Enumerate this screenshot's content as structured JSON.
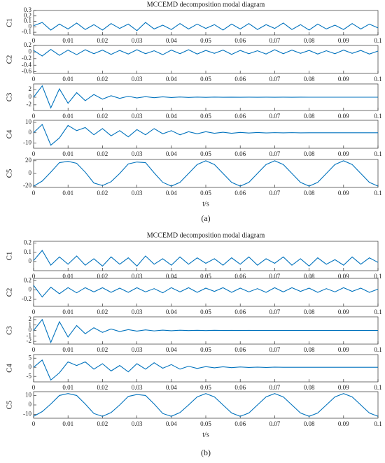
{
  "captions": [
    "(a)",
    "(b)"
  ],
  "chart_data": [
    {
      "type": "line",
      "title": "MCCEMD decomposition modal diagram",
      "ylabel": "C1",
      "color": "#0072bd",
      "x": [
        0,
        0.0025,
        0.005,
        0.0075,
        0.01,
        0.0125,
        0.015,
        0.0175,
        0.02,
        0.0225,
        0.025,
        0.0275,
        0.03,
        0.0325,
        0.035,
        0.0375,
        0.04,
        0.0425,
        0.045,
        0.0475,
        0.05,
        0.0525,
        0.055,
        0.0575,
        0.06,
        0.0625,
        0.065,
        0.0675,
        0.07,
        0.0725,
        0.075,
        0.0775,
        0.08,
        0.0825,
        0.085,
        0.0875,
        0.09,
        0.0925,
        0.095,
        0.0975,
        0.1
      ],
      "values": [
        0.02,
        0.08,
        -0.06,
        0.05,
        -0.04,
        0.07,
        -0.05,
        0.04,
        -0.06,
        0.06,
        -0.03,
        0.05,
        -0.07,
        0.08,
        -0.04,
        0.03,
        -0.05,
        0.06,
        -0.04,
        0.05,
        -0.03,
        0.04,
        -0.06,
        0.05,
        -0.04,
        0.06,
        -0.05,
        0.04,
        -0.03,
        0.07,
        -0.05,
        0.04,
        -0.06,
        0.05,
        -0.04,
        0.03,
        -0.05,
        0.06,
        -0.04,
        0.05,
        -0.02
      ],
      "xlim": [
        0,
        0.1
      ],
      "xticks": [
        0,
        0.01,
        0.02,
        0.03,
        0.04,
        0.05,
        0.06,
        0.07,
        0.08,
        0.09,
        0.1
      ],
      "ylim": [
        -0.15,
        0.3
      ],
      "yticks": [
        0.3,
        0.2,
        0.1,
        0,
        -0.1
      ]
    },
    {
      "type": "line",
      "ylabel": "C2",
      "color": "#0072bd",
      "x": [
        0,
        0.0025,
        0.005,
        0.0075,
        0.01,
        0.0125,
        0.015,
        0.0175,
        0.02,
        0.0225,
        0.025,
        0.0275,
        0.03,
        0.0325,
        0.035,
        0.0375,
        0.04,
        0.0425,
        0.045,
        0.0475,
        0.05,
        0.0525,
        0.055,
        0.0575,
        0.06,
        0.0625,
        0.065,
        0.0675,
        0.07,
        0.0725,
        0.075,
        0.0775,
        0.08,
        0.0825,
        0.085,
        0.0875,
        0.09,
        0.0925,
        0.095,
        0.0975,
        0.1
      ],
      "values": [
        0.05,
        -0.12,
        0.08,
        -0.1,
        0.06,
        -0.08,
        0.07,
        -0.05,
        0.06,
        -0.07,
        0.05,
        -0.06,
        0.07,
        -0.05,
        0.04,
        -0.08,
        0.06,
        -0.05,
        0.07,
        -0.06,
        0.05,
        -0.04,
        0.06,
        -0.07,
        0.05,
        -0.05,
        0.04,
        -0.06,
        0.07,
        -0.05,
        0.06,
        -0.04,
        0.05,
        -0.06,
        0.04,
        -0.05,
        0.06,
        -0.04,
        0.05,
        -0.06,
        0.03
      ],
      "xlim": [
        0,
        0.1
      ],
      "xticks": [
        0,
        0.01,
        0.02,
        0.03,
        0.04,
        0.05,
        0.06,
        0.07,
        0.08,
        0.09,
        0.1
      ],
      "ylim": [
        -0.65,
        0.2
      ],
      "yticks": [
        0.2,
        0,
        -0.2,
        -0.4,
        -0.6
      ]
    },
    {
      "type": "line",
      "ylabel": "C3",
      "color": "#0072bd",
      "x": [
        0,
        0.0025,
        0.005,
        0.0075,
        0.01,
        0.0125,
        0.015,
        0.0175,
        0.02,
        0.0225,
        0.025,
        0.0275,
        0.03,
        0.0325,
        0.035,
        0.0375,
        0.04,
        0.0425,
        0.045,
        0.0475,
        0.05,
        0.0525,
        0.055,
        0.0575,
        0.06,
        0.0625,
        0.065,
        0.0675,
        0.07,
        0.0725,
        0.075,
        0.0775,
        0.08,
        0.0825,
        0.085,
        0.0875,
        0.09,
        0.0925,
        0.095,
        0.0975,
        0.1
      ],
      "values": [
        0,
        3,
        -2.8,
        2.2,
        -1.6,
        1.2,
        -0.9,
        0.7,
        -0.5,
        0.4,
        -0.3,
        0.25,
        -0.2,
        0.15,
        -0.12,
        0.1,
        -0.08,
        0.06,
        -0.05,
        0.04,
        -0.03,
        0.03,
        -0.02,
        0.02,
        -0.02,
        0.01,
        -0.01,
        0.01,
        -0.01,
        0.01,
        -0.01,
        0.01,
        0,
        0,
        0,
        0,
        0,
        0,
        0,
        0,
        0
      ],
      "xlim": [
        0,
        0.1
      ],
      "xticks": [
        0,
        0.01,
        0.02,
        0.03,
        0.04,
        0.05,
        0.06,
        0.07,
        0.08,
        0.09,
        0.1
      ],
      "ylim": [
        -3.5,
        3.5
      ],
      "yticks": [
        2,
        0,
        -2
      ]
    },
    {
      "type": "line",
      "ylabel": "C4",
      "color": "#0072bd",
      "x": [
        0,
        0.0025,
        0.005,
        0.0075,
        0.01,
        0.0125,
        0.015,
        0.0175,
        0.02,
        0.0225,
        0.025,
        0.0275,
        0.03,
        0.0325,
        0.035,
        0.0375,
        0.04,
        0.0425,
        0.045,
        0.0475,
        0.05,
        0.0525,
        0.055,
        0.0575,
        0.06,
        0.0625,
        0.065,
        0.0675,
        0.07,
        0.0725,
        0.075,
        0.0775,
        0.08,
        0.0825,
        0.085,
        0.0875,
        0.09,
        0.0925,
        0.095,
        0.0975,
        0.1
      ],
      "values": [
        0,
        8,
        -12,
        -5,
        7,
        2,
        5,
        -2,
        4,
        -3,
        2,
        -4,
        3,
        -2,
        4,
        -1,
        2,
        -2,
        1,
        -1,
        1,
        -0.5,
        0.5,
        -0.5,
        0.3,
        -0.3,
        0.2,
        -0.2,
        0.1,
        -0.1,
        0.1,
        -0.1,
        0,
        0,
        0,
        0,
        0,
        0,
        0,
        0,
        0
      ],
      "xlim": [
        0,
        0.1
      ],
      "xticks": [
        0,
        0.01,
        0.02,
        0.03,
        0.04,
        0.05,
        0.06,
        0.07,
        0.08,
        0.09,
        0.1
      ],
      "ylim": [
        -15,
        12
      ],
      "yticks": [
        10,
        0,
        -10
      ]
    },
    {
      "type": "line",
      "ylabel": "C5",
      "xlabel": "t/s",
      "color": "#0072bd",
      "x": [
        0,
        0.0025,
        0.005,
        0.0075,
        0.01,
        0.0125,
        0.015,
        0.0175,
        0.02,
        0.0225,
        0.025,
        0.0275,
        0.03,
        0.0325,
        0.035,
        0.0375,
        0.04,
        0.0425,
        0.045,
        0.0475,
        0.05,
        0.0525,
        0.055,
        0.0575,
        0.06,
        0.0625,
        0.065,
        0.0675,
        0.07,
        0.0725,
        0.075,
        0.0775,
        0.08,
        0.0825,
        0.085,
        0.0875,
        0.09,
        0.0925,
        0.095,
        0.0975,
        0.1
      ],
      "values": [
        -20,
        -12,
        2,
        17,
        19,
        16,
        2,
        -15,
        -19,
        -13,
        0,
        15,
        18,
        17,
        1,
        -14,
        -20,
        -14,
        0,
        14,
        20,
        14,
        0,
        -14,
        -20,
        -14,
        0,
        14,
        20,
        14,
        0,
        -14,
        -20,
        -14,
        0,
        14,
        20,
        14,
        0,
        -14,
        -20
      ],
      "xlim": [
        0,
        0.1
      ],
      "xticks": [
        0,
        0.01,
        0.02,
        0.03,
        0.04,
        0.05,
        0.06,
        0.07,
        0.08,
        0.09,
        0.1
      ],
      "ylim": [
        -22,
        22
      ],
      "yticks": [
        20,
        0,
        -20
      ]
    },
    {
      "type": "line",
      "title": "MCCEMD decomposition modal diagram",
      "ylabel": "C1",
      "color": "#0072bd",
      "x": [
        0,
        0.0025,
        0.005,
        0.0075,
        0.01,
        0.0125,
        0.015,
        0.0175,
        0.02,
        0.0225,
        0.025,
        0.0275,
        0.03,
        0.0325,
        0.035,
        0.0375,
        0.04,
        0.0425,
        0.045,
        0.0475,
        0.05,
        0.0525,
        0.055,
        0.0575,
        0.06,
        0.0625,
        0.065,
        0.0675,
        0.07,
        0.0725,
        0.075,
        0.0775,
        0.08,
        0.0825,
        0.085,
        0.0875,
        0.09,
        0.0925,
        0.095,
        0.0975,
        0.1
      ],
      "values": [
        0.01,
        0.12,
        -0.04,
        0.05,
        -0.03,
        0.06,
        -0.04,
        0.03,
        -0.05,
        0.05,
        -0.03,
        0.04,
        -0.05,
        0.06,
        -0.03,
        0.03,
        -0.04,
        0.05,
        -0.03,
        0.04,
        -0.02,
        0.03,
        -0.04,
        0.04,
        -0.03,
        0.05,
        -0.04,
        0.03,
        -0.02,
        0.05,
        -0.04,
        0.03,
        -0.05,
        0.04,
        -0.03,
        0.02,
        -0.04,
        0.05,
        -0.03,
        0.04,
        -0.01
      ],
      "xlim": [
        0,
        0.1
      ],
      "xticks": [
        0,
        0.01,
        0.02,
        0.03,
        0.04,
        0.05,
        0.06,
        0.07,
        0.08,
        0.09,
        0.1
      ],
      "ylim": [
        -0.1,
        0.22
      ],
      "yticks": [
        0.2,
        0.1,
        0
      ]
    },
    {
      "type": "line",
      "ylabel": "C2",
      "color": "#0072bd",
      "x": [
        0,
        0.0025,
        0.005,
        0.0075,
        0.01,
        0.0125,
        0.015,
        0.0175,
        0.02,
        0.0225,
        0.025,
        0.0275,
        0.03,
        0.0325,
        0.035,
        0.0375,
        0.04,
        0.0425,
        0.045,
        0.0475,
        0.05,
        0.0525,
        0.055,
        0.0575,
        0.06,
        0.0625,
        0.065,
        0.0675,
        0.07,
        0.0725,
        0.075,
        0.0775,
        0.08,
        0.0825,
        0.085,
        0.0875,
        0.09,
        0.0925,
        0.095,
        0.0975,
        0.1
      ],
      "values": [
        0.1,
        -0.15,
        0.06,
        -0.08,
        0.05,
        -0.06,
        0.05,
        -0.04,
        0.05,
        -0.05,
        0.04,
        -0.05,
        0.05,
        -0.04,
        0.03,
        -0.06,
        0.05,
        -0.04,
        0.05,
        -0.05,
        0.04,
        -0.03,
        0.05,
        -0.05,
        0.04,
        -0.04,
        0.03,
        -0.05,
        0.05,
        -0.04,
        0.05,
        -0.03,
        0.04,
        -0.05,
        0.03,
        -0.04,
        0.05,
        -0.03,
        0.04,
        -0.05,
        0.02
      ],
      "xlim": [
        0,
        0.1
      ],
      "xticks": [
        0,
        0.01,
        0.02,
        0.03,
        0.04,
        0.05,
        0.06,
        0.07,
        0.08,
        0.09,
        0.1
      ],
      "ylim": [
        -0.35,
        0.25
      ],
      "yticks": [
        0.2,
        0,
        -0.2
      ]
    },
    {
      "type": "line",
      "ylabel": "C3",
      "color": "#0072bd",
      "x": [
        0,
        0.0025,
        0.005,
        0.0075,
        0.01,
        0.0125,
        0.015,
        0.0175,
        0.02,
        0.0225,
        0.025,
        0.0275,
        0.03,
        0.0325,
        0.035,
        0.0375,
        0.04,
        0.0425,
        0.045,
        0.0475,
        0.05,
        0.0525,
        0.055,
        0.0575,
        0.06,
        0.0625,
        0.065,
        0.0675,
        0.07,
        0.0725,
        0.075,
        0.0775,
        0.08,
        0.0825,
        0.085,
        0.0875,
        0.09,
        0.0925,
        0.095,
        0.0975,
        0.1
      ],
      "values": [
        0,
        2,
        -2.2,
        1.6,
        -1.2,
        0.9,
        -0.6,
        0.5,
        -0.35,
        0.28,
        -0.2,
        0.15,
        -0.12,
        0.1,
        -0.08,
        0.06,
        -0.05,
        0.04,
        -0.03,
        0.03,
        -0.02,
        0.02,
        -0.01,
        0.01,
        -0.01,
        0.01,
        0,
        0,
        0,
        0,
        0,
        0,
        0,
        0,
        0,
        0,
        0,
        0,
        0,
        0,
        0
      ],
      "xlim": [
        0,
        0.1
      ],
      "xticks": [
        0,
        0.01,
        0.02,
        0.03,
        0.04,
        0.05,
        0.06,
        0.07,
        0.08,
        0.09,
        0.1
      ],
      "ylim": [
        -2.5,
        2.5
      ],
      "yticks": [
        2,
        1,
        0,
        -1,
        -2
      ]
    },
    {
      "type": "line",
      "ylabel": "C4",
      "color": "#0072bd",
      "x": [
        0,
        0.0025,
        0.005,
        0.0075,
        0.01,
        0.0125,
        0.015,
        0.0175,
        0.02,
        0.0225,
        0.025,
        0.0275,
        0.03,
        0.0325,
        0.035,
        0.0375,
        0.04,
        0.0425,
        0.045,
        0.0475,
        0.05,
        0.0525,
        0.055,
        0.0575,
        0.06,
        0.0625,
        0.065,
        0.0675,
        0.07,
        0.0725,
        0.075,
        0.0775,
        0.08,
        0.0825,
        0.085,
        0.0875,
        0.09,
        0.0925,
        0.095,
        0.0975,
        0.1
      ],
      "values": [
        0,
        4,
        -7,
        -3,
        3,
        1,
        3,
        -1,
        2,
        -2,
        1,
        -2.5,
        2,
        -1,
        2.5,
        -0.5,
        1.5,
        -1,
        0.6,
        -0.6,
        0.4,
        -0.3,
        0.3,
        -0.2,
        0.2,
        -0.1,
        0.1,
        -0.1,
        0.1,
        0,
        0,
        0,
        0,
        0,
        0,
        0,
        0,
        0,
        0,
        0,
        0
      ],
      "xlim": [
        0,
        0.1
      ],
      "xticks": [
        0,
        0.01,
        0.02,
        0.03,
        0.04,
        0.05,
        0.06,
        0.07,
        0.08,
        0.09,
        0.1
      ],
      "ylim": [
        -8,
        7
      ],
      "yticks": [
        5,
        0,
        -5
      ]
    },
    {
      "type": "line",
      "ylabel": "C5",
      "xlabel": "t/s",
      "color": "#0072bd",
      "x": [
        0,
        0.0025,
        0.005,
        0.0075,
        0.01,
        0.0125,
        0.015,
        0.0175,
        0.02,
        0.0225,
        0.025,
        0.0275,
        0.03,
        0.0325,
        0.035,
        0.0375,
        0.04,
        0.0425,
        0.045,
        0.0475,
        0.05,
        0.0525,
        0.055,
        0.0575,
        0.06,
        0.0625,
        0.065,
        0.0675,
        0.07,
        0.0725,
        0.075,
        0.0775,
        0.08,
        0.0825,
        0.085,
        0.0875,
        0.09,
        0.0925,
        0.095,
        0.0975,
        0.1
      ],
      "values": [
        -12,
        -7,
        1,
        10,
        12,
        10,
        1,
        -9,
        -12,
        -8,
        0,
        9,
        11,
        10,
        1,
        -9,
        -12,
        -8,
        0,
        8.5,
        12,
        8.5,
        0,
        -8.5,
        -12,
        -8.5,
        0,
        8.5,
        12,
        8.5,
        0,
        -8.5,
        -12,
        -8.5,
        0,
        8.5,
        12,
        8.5,
        0,
        -8.5,
        -12
      ],
      "xlim": [
        0,
        0.1
      ],
      "xticks": [
        0,
        0.01,
        0.02,
        0.03,
        0.04,
        0.05,
        0.06,
        0.07,
        0.08,
        0.09,
        0.1
      ],
      "ylim": [
        -14,
        14
      ],
      "yticks": [
        10,
        0,
        -10
      ]
    }
  ]
}
